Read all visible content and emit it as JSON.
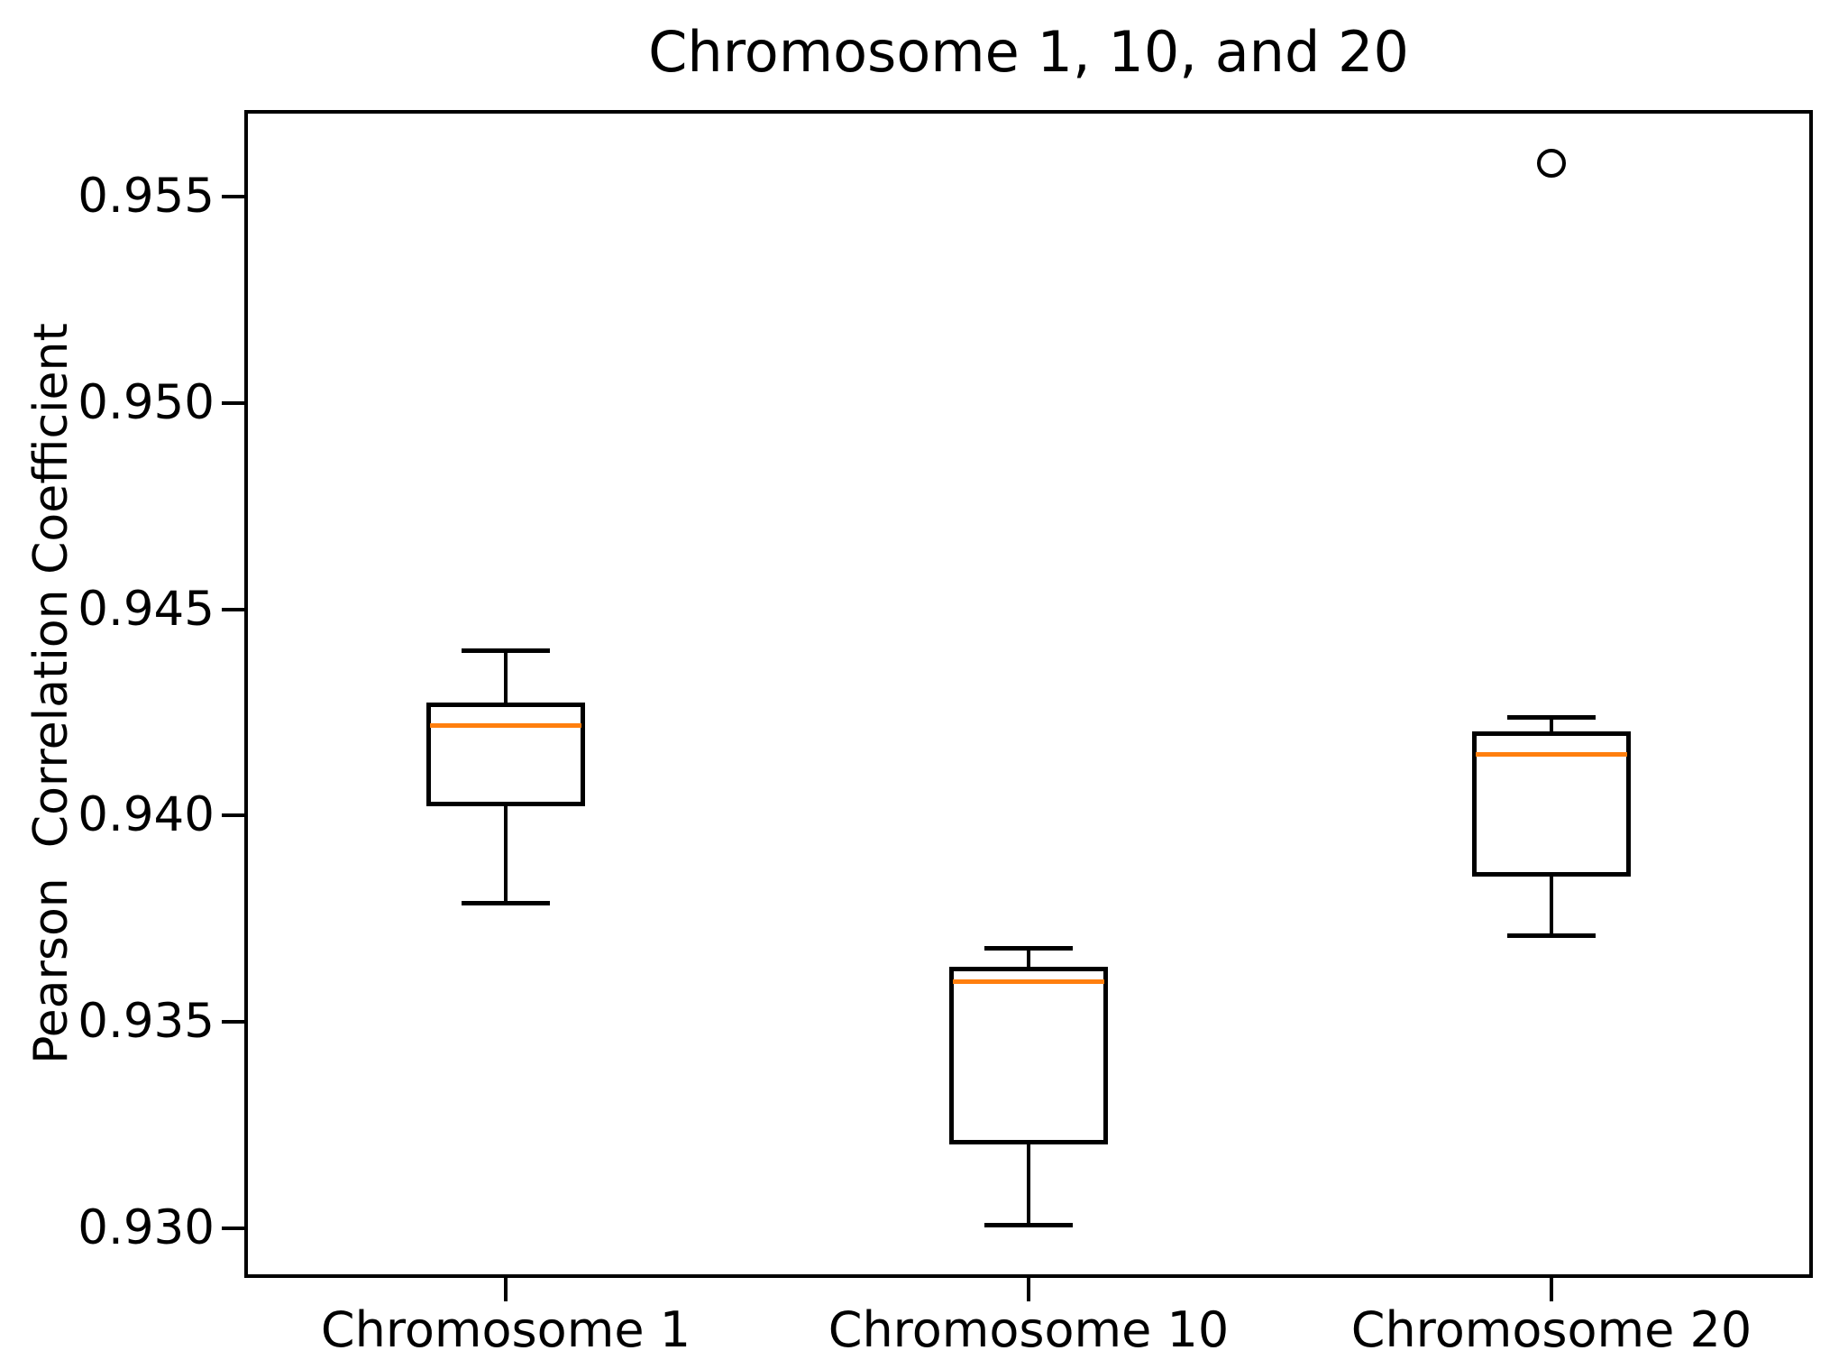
{
  "chart_data": {
    "type": "boxplot",
    "title": "Chromosome 1, 10, and 20",
    "xlabel": "",
    "ylabel": "Pearson  Correlation Coefficient",
    "categories": [
      "Chromosome 1",
      "Chromosome 10",
      "Chromosome 20"
    ],
    "ylim": [
      0.9288,
      0.9571
    ],
    "yticks": [
      0.93,
      0.935,
      0.94,
      0.945,
      0.95,
      0.955
    ],
    "ytick_labels": [
      "0.930",
      "0.935",
      "0.940",
      "0.945",
      "0.950",
      "0.955"
    ],
    "grid": false,
    "legend": false,
    "box_color": "#000000",
    "median_color": "#ff7f0e",
    "series": [
      {
        "name": "Chromosome 1",
        "whislo": 0.9379,
        "q1": 0.9403,
        "med": 0.9422,
        "q3": 0.9427,
        "whishi": 0.944,
        "outliers": []
      },
      {
        "name": "Chromosome 10",
        "whislo": 0.9301,
        "q1": 0.9321,
        "med": 0.936,
        "q3": 0.9363,
        "whishi": 0.9368,
        "outliers": []
      },
      {
        "name": "Chromosome 20",
        "whislo": 0.9371,
        "q1": 0.9386,
        "med": 0.9415,
        "q3": 0.942,
        "whishi": 0.9424,
        "outliers": [
          0.9558
        ]
      }
    ]
  }
}
